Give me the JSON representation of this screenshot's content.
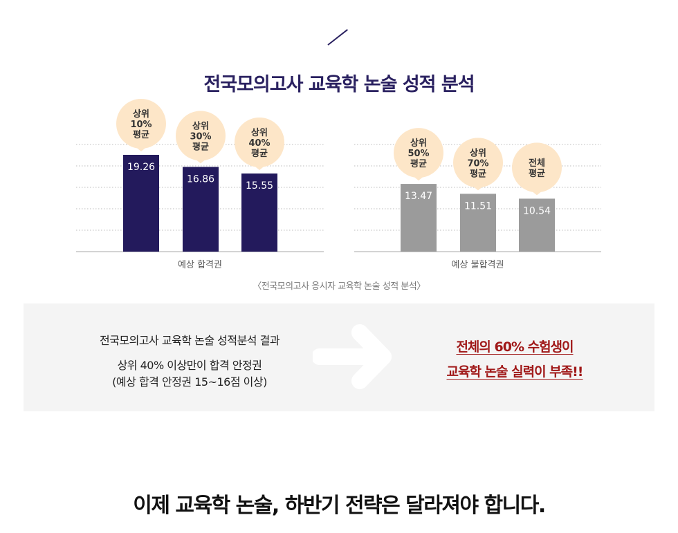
{
  "title": "전국모의고사 교육학 논술 성적 분석",
  "caption": "〈전국모의고사 응시자 교육학 논술 성적 분석〉",
  "colors": {
    "pass": "#231a5c",
    "fail": "#9b9b9b",
    "bubble": "#fde6c8",
    "highlight": "#a01818"
  },
  "chart_data": {
    "type": "bar",
    "groups": [
      {
        "name": "예상 합격권",
        "bars": [
          {
            "label": [
              "상위",
              "10%",
              "평균"
            ],
            "value": 19.26
          },
          {
            "label": [
              "상위",
              "30%",
              "평균"
            ],
            "value": 16.86
          },
          {
            "label": [
              "상위",
              "40%",
              "평균"
            ],
            "value": 15.55
          }
        ]
      },
      {
        "name": "예상 불합격권",
        "bars": [
          {
            "label": [
              "상위",
              "50%",
              "평균"
            ],
            "value": 13.47
          },
          {
            "label": [
              "상위",
              "70%",
              "평균"
            ],
            "value": 11.51
          },
          {
            "label": [
              "전체",
              "평균"
            ],
            "value": 10.54
          }
        ]
      }
    ],
    "grid": true,
    "legend": "none"
  },
  "summary": {
    "line1": "전국모의고사 교육학 논술 성적분석 결과",
    "line2": "상위 40% 이상만이 합격 안정권",
    "line3": "(예상 합격 안정권 15~16점 이상)",
    "highlight1": "전체의 60% 수험생이",
    "highlight2": "교육학 논술 실력이 부족!!",
    "arrow_icon": "arrow-right-icon"
  },
  "bottom_text": "이제 교육학 논술, 하반기 전략은 달라져야 합니다."
}
